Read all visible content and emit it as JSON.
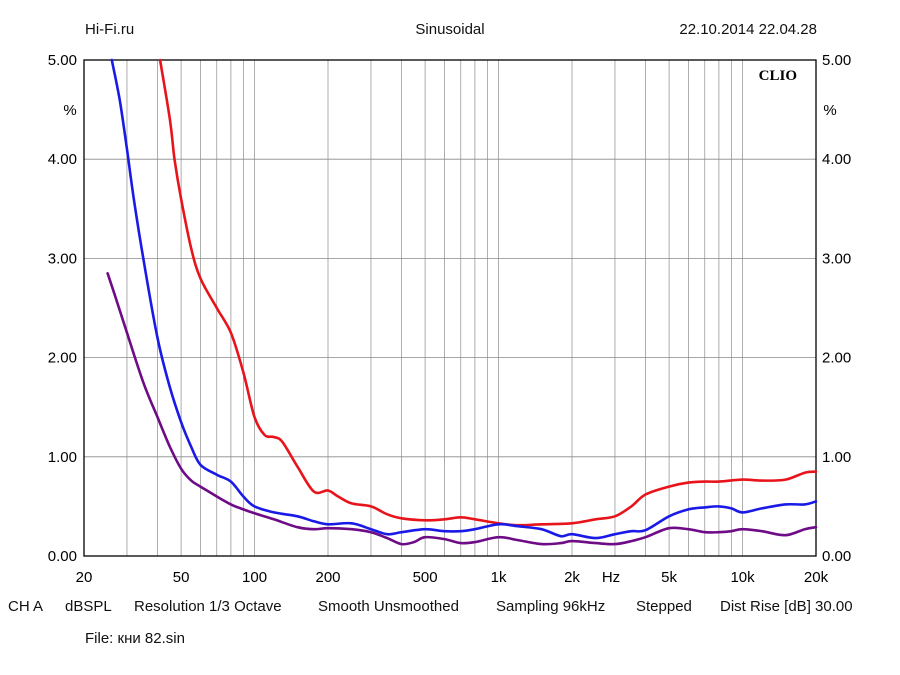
{
  "header": {
    "left": "Hi-Fi.ru",
    "center": "Sinusoidal",
    "right": "22.10.2014 22.04.28"
  },
  "chart_data": {
    "type": "line",
    "title": "Sinusoidal",
    "xscale": "log",
    "xlim": [
      20,
      20000
    ],
    "ylim": [
      0,
      5
    ],
    "xlabel": "Hz",
    "ylabel": "%",
    "brand": "CLIO",
    "grid": true,
    "x_ticks": [
      {
        "value": 20,
        "label": "20"
      },
      {
        "value": 50,
        "label": "50"
      },
      {
        "value": 100,
        "label": "100"
      },
      {
        "value": 200,
        "label": "200"
      },
      {
        "value": 500,
        "label": "500"
      },
      {
        "value": 1000,
        "label": "1k"
      },
      {
        "value": 2000,
        "label": "2k"
      },
      {
        "value": 5000,
        "label": "5k"
      },
      {
        "value": 10000,
        "label": "10k"
      },
      {
        "value": 20000,
        "label": "20k"
      }
    ],
    "y_ticks": [
      {
        "value": 0,
        "label": "0.00"
      },
      {
        "value": 1,
        "label": "1.00"
      },
      {
        "value": 2,
        "label": "2.00"
      },
      {
        "value": 3,
        "label": "3.00"
      },
      {
        "value": 4,
        "label": "4.00"
      },
      {
        "value": 5,
        "label": "5.00"
      }
    ],
    "series": [
      {
        "name": "red",
        "color": "#e8141b",
        "x": [
          41,
          45,
          47,
          50,
          55,
          60,
          70,
          80,
          90,
          100,
          110,
          120,
          130,
          150,
          175,
          200,
          220,
          250,
          300,
          350,
          400,
          500,
          600,
          700,
          800,
          1000,
          1200,
          1500,
          2000,
          2500,
          3000,
          3500,
          4000,
          5000,
          6000,
          7000,
          8000,
          10000,
          12000,
          15000,
          18000,
          20000
        ],
        "y": [
          5.0,
          4.4,
          4.0,
          3.6,
          3.1,
          2.8,
          2.5,
          2.25,
          1.85,
          1.4,
          1.22,
          1.2,
          1.15,
          0.9,
          0.65,
          0.66,
          0.6,
          0.53,
          0.5,
          0.42,
          0.38,
          0.36,
          0.37,
          0.39,
          0.37,
          0.33,
          0.31,
          0.32,
          0.33,
          0.37,
          0.4,
          0.5,
          0.62,
          0.7,
          0.74,
          0.75,
          0.75,
          0.77,
          0.76,
          0.77,
          0.84,
          0.85
        ]
      },
      {
        "name": "blue",
        "color": "#1a1ae6",
        "x": [
          26,
          28,
          30,
          32,
          35,
          40,
          45,
          50,
          55,
          60,
          70,
          80,
          90,
          100,
          120,
          150,
          175,
          200,
          250,
          300,
          350,
          400,
          500,
          600,
          700,
          800,
          1000,
          1200,
          1500,
          1800,
          2000,
          2500,
          3000,
          3500,
          4000,
          5000,
          6000,
          7000,
          8000,
          9000,
          10000,
          12000,
          15000,
          18000,
          20000
        ],
        "y": [
          5.0,
          4.6,
          4.1,
          3.6,
          3.0,
          2.2,
          1.7,
          1.35,
          1.1,
          0.92,
          0.82,
          0.75,
          0.6,
          0.5,
          0.44,
          0.4,
          0.35,
          0.32,
          0.33,
          0.27,
          0.22,
          0.24,
          0.27,
          0.25,
          0.25,
          0.27,
          0.32,
          0.3,
          0.27,
          0.2,
          0.22,
          0.18,
          0.22,
          0.25,
          0.26,
          0.4,
          0.47,
          0.49,
          0.5,
          0.48,
          0.44,
          0.48,
          0.52,
          0.52,
          0.55
        ]
      },
      {
        "name": "purple",
        "color": "#6e0b86",
        "x": [
          25,
          27,
          30,
          35,
          40,
          45,
          50,
          55,
          60,
          70,
          80,
          90,
          100,
          120,
          150,
          175,
          200,
          250,
          300,
          350,
          400,
          450,
          500,
          600,
          700,
          800,
          1000,
          1200,
          1500,
          1800,
          2000,
          2500,
          3000,
          3500,
          4000,
          5000,
          6000,
          7000,
          8000,
          9000,
          10000,
          12000,
          15000,
          18000,
          20000
        ],
        "y": [
          2.85,
          2.6,
          2.25,
          1.75,
          1.4,
          1.1,
          0.88,
          0.76,
          0.7,
          0.6,
          0.52,
          0.47,
          0.43,
          0.37,
          0.29,
          0.27,
          0.28,
          0.27,
          0.24,
          0.18,
          0.12,
          0.14,
          0.19,
          0.17,
          0.13,
          0.14,
          0.19,
          0.16,
          0.12,
          0.13,
          0.15,
          0.13,
          0.12,
          0.15,
          0.19,
          0.28,
          0.27,
          0.24,
          0.24,
          0.25,
          0.27,
          0.25,
          0.21,
          0.27,
          0.29
        ]
      }
    ]
  },
  "footer": {
    "channel": "CH A",
    "unit": "dBSPL",
    "resolution": "Resolution 1/3 Octave",
    "smooth": "Smooth Unsmoothed",
    "sampling": "Sampling 96kHz",
    "stepped": "Stepped",
    "dist_rise": "Dist Rise [dB] 30.00",
    "file": "File: кни 82.sin"
  }
}
